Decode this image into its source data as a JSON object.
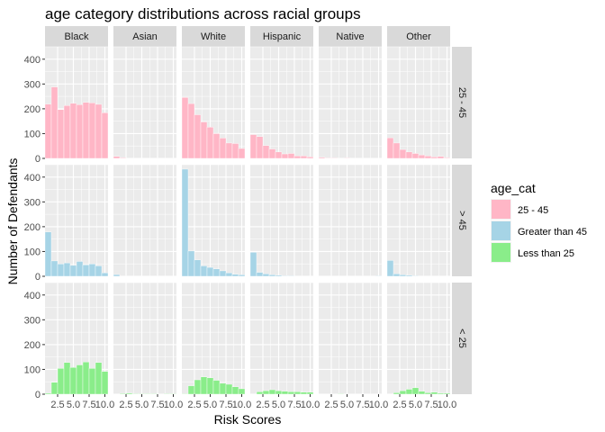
{
  "chart_data": {
    "type": "bar",
    "title": "age category distributions across racial groups",
    "xlabel": "Risk Scores",
    "ylabel": "Number of Defendants",
    "facet_columns": [
      "Black",
      "Asian",
      "White",
      "Hispanic",
      "Native",
      "Other"
    ],
    "facet_rows": [
      "25 - 45",
      "> 45",
      "< 25"
    ],
    "x": [
      1,
      2,
      3,
      4,
      5,
      6,
      7,
      8,
      9,
      10
    ],
    "x_ticks": [
      2.5,
      5.0,
      7.5,
      10.0
    ],
    "x_tick_labels": [
      "2.5",
      "5.0",
      "7.5",
      "10.0"
    ],
    "xlim": [
      0.5,
      10.5
    ],
    "y_ticks": [
      0,
      100,
      200,
      300,
      400
    ],
    "y_tick_labels": [
      "0",
      "100",
      "200",
      "300",
      "400"
    ],
    "ylim": [
      0,
      450
    ],
    "grid": true,
    "legend": {
      "title": "age_cat",
      "position": "right",
      "entries": [
        {
          "label": "25 - 45",
          "color": "#ffb6c6"
        },
        {
          "label": "Greater than 45",
          "color": "#a6d4e6"
        },
        {
          "label": "Less than 25",
          "color": "#8aed8a"
        }
      ]
    },
    "series": [
      {
        "row": "25 - 45",
        "color": "#ffb6c6",
        "panels": {
          "Black": [
            219,
            288,
            197,
            213,
            222,
            217,
            226,
            224,
            218,
            184
          ],
          "Asian": [
            8,
            3,
            1,
            1,
            1,
            0,
            0,
            0,
            0,
            0
          ],
          "White": [
            246,
            221,
            176,
            147,
            126,
            100,
            82,
            62,
            60,
            40
          ],
          "Hispanic": [
            96,
            88,
            52,
            38,
            26,
            18,
            20,
            10,
            10,
            6
          ],
          "Native": [
            4,
            2,
            2,
            1,
            2,
            1,
            1,
            1,
            0,
            0
          ],
          "Other": [
            83,
            62,
            36,
            26,
            20,
            14,
            10,
            6,
            8,
            3
          ]
        }
      },
      {
        "row": "> 45",
        "color": "#a6d4e6",
        "panels": {
          "Black": [
            179,
            62,
            50,
            54,
            44,
            60,
            46,
            50,
            42,
            14
          ],
          "Asian": [
            7,
            1,
            0,
            0,
            0,
            0,
            0,
            0,
            0,
            0
          ],
          "White": [
            432,
            102,
            66,
            42,
            36,
            30,
            22,
            14,
            8,
            6
          ],
          "Hispanic": [
            97,
            16,
            10,
            6,
            4,
            2,
            2,
            1,
            1,
            0
          ],
          "Native": [
            1,
            0,
            0,
            0,
            0,
            0,
            0,
            0,
            0,
            2
          ],
          "Other": [
            64,
            10,
            6,
            4,
            2,
            1,
            0,
            0,
            0,
            0
          ]
        }
      },
      {
        "row": "< 25",
        "color": "#8aed8a",
        "panels": {
          "Black": [
            4,
            48,
            104,
            128,
            108,
            118,
            130,
            104,
            128,
            92
          ],
          "Asian": [
            0,
            3,
            4,
            2,
            2,
            2,
            2,
            1,
            2,
            2
          ],
          "White": [
            2,
            34,
            58,
            70,
            66,
            56,
            44,
            40,
            30,
            22
          ],
          "Hispanic": [
            1,
            10,
            14,
            18,
            14,
            12,
            10,
            10,
            8,
            8
          ],
          "Native": [
            0,
            1,
            1,
            2,
            1,
            1,
            1,
            0,
            1,
            0
          ],
          "Other": [
            1,
            6,
            14,
            20,
            26,
            12,
            6,
            8,
            4,
            4
          ]
        }
      }
    ]
  }
}
